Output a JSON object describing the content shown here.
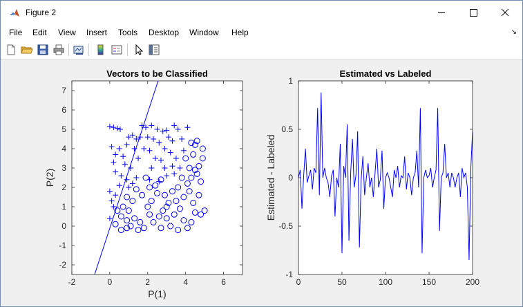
{
  "window": {
    "title": "Figure 2"
  },
  "menu": {
    "items": [
      "File",
      "Edit",
      "View",
      "Insert",
      "Tools",
      "Desktop",
      "Window",
      "Help"
    ]
  },
  "toolbar": {
    "icons": [
      "new-figure-icon",
      "open-file-icon",
      "save-icon",
      "print-icon",
      "link-plot-icon",
      "insert-colorbar-icon",
      "insert-legend-icon",
      "edit-plot-icon",
      "property-inspector-icon"
    ]
  },
  "colors": {
    "plot": "#0000ff",
    "axes": "#262626",
    "background": "#f0f0f0"
  },
  "chart_data": [
    {
      "type": "scatter",
      "title": "Vectors to be Classified",
      "xlabel": "P(1)",
      "ylabel": "P(2)",
      "xlim": [
        -2,
        7
      ],
      "ylim": [
        -2.5,
        7.5
      ],
      "xticks": [
        -2,
        0,
        2,
        4,
        6
      ],
      "yticks": [
        -2,
        -1,
        0,
        1,
        2,
        3,
        4,
        5,
        6,
        7
      ],
      "series": [
        {
          "marker": "+",
          "points": [
            [
              0,
              5.15
            ],
            [
              0.2,
              5.1
            ],
            [
              0.4,
              5.05
            ],
            [
              0.55,
              5.0
            ],
            [
              1.7,
              5.2
            ],
            [
              1.9,
              5.1
            ],
            [
              2.2,
              5.2
            ],
            [
              2.5,
              5.0
            ],
            [
              3.4,
              5.2
            ],
            [
              3.6,
              5.0
            ],
            [
              3.0,
              4.95
            ],
            [
              4.1,
              5.1
            ],
            [
              2.8,
              4.9
            ],
            [
              1.2,
              4.7
            ],
            [
              1.0,
              4.6
            ],
            [
              1.4,
              4.5
            ],
            [
              1.6,
              4.6
            ],
            [
              2.0,
              4.6
            ],
            [
              2.3,
              4.5
            ],
            [
              3.1,
              4.6
            ],
            [
              3.3,
              4.4
            ],
            [
              3.8,
              4.5
            ],
            [
              2.6,
              4.3
            ],
            [
              0.1,
              4.1
            ],
            [
              0.5,
              4.0
            ],
            [
              0.9,
              4.2
            ],
            [
              1.3,
              4.0
            ],
            [
              1.8,
              4.0
            ],
            [
              2.1,
              3.9
            ],
            [
              2.9,
              4.0
            ],
            [
              3.2,
              3.8
            ],
            [
              3.9,
              3.9
            ],
            [
              0.3,
              3.7
            ],
            [
              0.7,
              3.6
            ],
            [
              1.5,
              3.5
            ],
            [
              2.4,
              3.5
            ],
            [
              2.7,
              3.4
            ],
            [
              3.5,
              3.5
            ],
            [
              0.2,
              3.3
            ],
            [
              0.8,
              3.2
            ],
            [
              1.1,
              3.0
            ],
            [
              2.2,
              3.0
            ],
            [
              2.9,
              3.0
            ],
            [
              3.3,
              3.1
            ],
            [
              3.7,
              3.0
            ],
            [
              0.3,
              2.8
            ],
            [
              0.6,
              2.6
            ],
            [
              1.4,
              2.5
            ],
            [
              3.0,
              2.6
            ],
            [
              2.6,
              2.3
            ],
            [
              0.9,
              2.4
            ],
            [
              1.2,
              2.2
            ],
            [
              2.1,
              2.4
            ],
            [
              0.0,
              1.8
            ],
            [
              0.3,
              1.6
            ],
            [
              0.1,
              1.3
            ],
            [
              0.2,
              1.0
            ],
            [
              0.0,
              0.4
            ],
            [
              0.5,
              2.1
            ],
            [
              1.0,
              2.0
            ],
            [
              3.4,
              2.7
            ]
          ]
        },
        {
          "marker": "o",
          "points": [
            [
              4.6,
              4.4
            ],
            [
              4.5,
              4.2
            ],
            [
              4.3,
              4.3
            ],
            [
              4.9,
              3.5
            ],
            [
              4.7,
              3.1
            ],
            [
              4.5,
              2.9
            ],
            [
              4.2,
              3.0
            ],
            [
              4.6,
              2.7
            ],
            [
              4.3,
              2.5
            ],
            [
              4.1,
              2.2
            ],
            [
              3.8,
              2.5
            ],
            [
              3.6,
              2.0
            ],
            [
              3.3,
              1.8
            ],
            [
              3.5,
              1.3
            ],
            [
              3.1,
              1.2
            ],
            [
              2.9,
              1.6
            ],
            [
              2.5,
              1.7
            ],
            [
              2.7,
              2.4
            ],
            [
              2.4,
              2.1
            ],
            [
              1.9,
              2.5
            ],
            [
              2.1,
              2.0
            ],
            [
              1.7,
              1.6
            ],
            [
              1.4,
              1.9
            ],
            [
              1.2,
              1.3
            ],
            [
              0.9,
              1.5
            ],
            [
              0.7,
              1.0
            ],
            [
              0.4,
              0.8
            ],
            [
              0.6,
              0.5
            ],
            [
              0.9,
              0.3
            ],
            [
              1.1,
              0.0
            ],
            [
              1.3,
              0.4
            ],
            [
              1.6,
              0.2
            ],
            [
              1.8,
              -0.1
            ],
            [
              2.1,
              0.6
            ],
            [
              2.3,
              0.2
            ],
            [
              2.6,
              0.5
            ],
            [
              2.8,
              0.8
            ],
            [
              3.0,
              0.4
            ],
            [
              3.2,
              0.0
            ],
            [
              3.4,
              0.6
            ],
            [
              3.7,
              0.9
            ],
            [
              3.9,
              0.3
            ],
            [
              4.1,
              -0.1
            ],
            [
              4.3,
              0.2
            ],
            [
              4.5,
              0.7
            ],
            [
              4.8,
              0.6
            ],
            [
              5.0,
              0.8
            ],
            [
              4.4,
              1.2
            ],
            [
              4.7,
              1.6
            ],
            [
              4.2,
              1.8
            ],
            [
              3.9,
              1.5
            ],
            [
              0.3,
              0.1
            ],
            [
              0.6,
              -0.2
            ],
            [
              0.9,
              -0.1
            ],
            [
              1.5,
              -0.2
            ],
            [
              2.7,
              -0.1
            ],
            [
              3.6,
              -0.2
            ],
            [
              4.9,
              4.0
            ],
            [
              4.4,
              3.7
            ],
            [
              4.0,
              3.5
            ],
            [
              4.8,
              2.3
            ],
            [
              2.2,
              1.3
            ],
            [
              1.0,
              0.8
            ],
            [
              2.0,
              1.0
            ],
            [
              3.0,
              1.0
            ]
          ]
        }
      ],
      "line": {
        "x": [
          -0.8,
          2.55
        ],
        "y": [
          -2.5,
          7.5
        ]
      }
    },
    {
      "type": "line",
      "title": "Estimated vs Labeled",
      "xlabel": "",
      "ylabel": "Estimated - Labeled",
      "xlim": [
        0,
        200
      ],
      "ylim": [
        -1,
        1
      ],
      "xticks": [
        0,
        50,
        100,
        150,
        200
      ],
      "yticks": [
        -1,
        -0.5,
        0,
        0.5,
        1
      ],
      "x": [
        0,
        2,
        4,
        6,
        8,
        10,
        12,
        14,
        16,
        18,
        20,
        22,
        24,
        26,
        28,
        30,
        32,
        34,
        36,
        38,
        40,
        42,
        44,
        46,
        48,
        50,
        52,
        54,
        56,
        58,
        60,
        62,
        64,
        66,
        68,
        70,
        72,
        74,
        76,
        78,
        80,
        82,
        84,
        86,
        88,
        90,
        92,
        94,
        96,
        98,
        100,
        102,
        104,
        106,
        108,
        110,
        112,
        114,
        116,
        118,
        120,
        122,
        124,
        126,
        128,
        130,
        132,
        134,
        136,
        138,
        140,
        142,
        144,
        146,
        148,
        150,
        152,
        154,
        156,
        158,
        160,
        162,
        164,
        166,
        168,
        170,
        172,
        174,
        176,
        178,
        180,
        182,
        184,
        186,
        188,
        190,
        192,
        194,
        196,
        198,
        200
      ],
      "values": [
        0,
        0.08,
        -0.32,
        0.02,
        0.3,
        -0.05,
        0.02,
        0.08,
        -0.12,
        0.1,
        0.05,
        0.72,
        -0.18,
        0.88,
        0.0,
        0.1,
        0.0,
        -0.05,
        -0.2,
        0.02,
        0.08,
        -0.4,
        0.0,
        -0.1,
        0.35,
        -0.78,
        0.12,
        0.0,
        0.55,
        -0.65,
        0.05,
        0.4,
        -0.1,
        0.02,
        0.48,
        -0.72,
        -0.02,
        0.22,
        -0.18,
        0.0,
        0.15,
        -0.1,
        0.0,
        -0.2,
        0.05,
        0.3,
        -0.1,
        -0.02,
        0.28,
        -0.32,
        0.0,
        0.05,
        0.0,
        -0.1,
        -0.2,
        0.08,
        0.0,
        0.12,
        -0.1,
        0.02,
        0.0,
        0.22,
        -0.12,
        0.05,
        0.0,
        -0.18,
        0.0,
        0.05,
        0.28,
        -0.1,
        0.72,
        -0.78,
        0.0,
        0.08,
        0.0,
        0.02,
        0.1,
        -0.1,
        0.0,
        0.08,
        0.72,
        -0.55,
        0.0,
        0.05,
        0.35,
        0.0,
        0.05,
        -0.1,
        0.05,
        0.0,
        -0.1,
        0.0,
        0.05,
        -0.2,
        0.1,
        0.0,
        0.05,
        -0.1,
        -0.85,
        0.1,
        0.48
      ]
    }
  ]
}
